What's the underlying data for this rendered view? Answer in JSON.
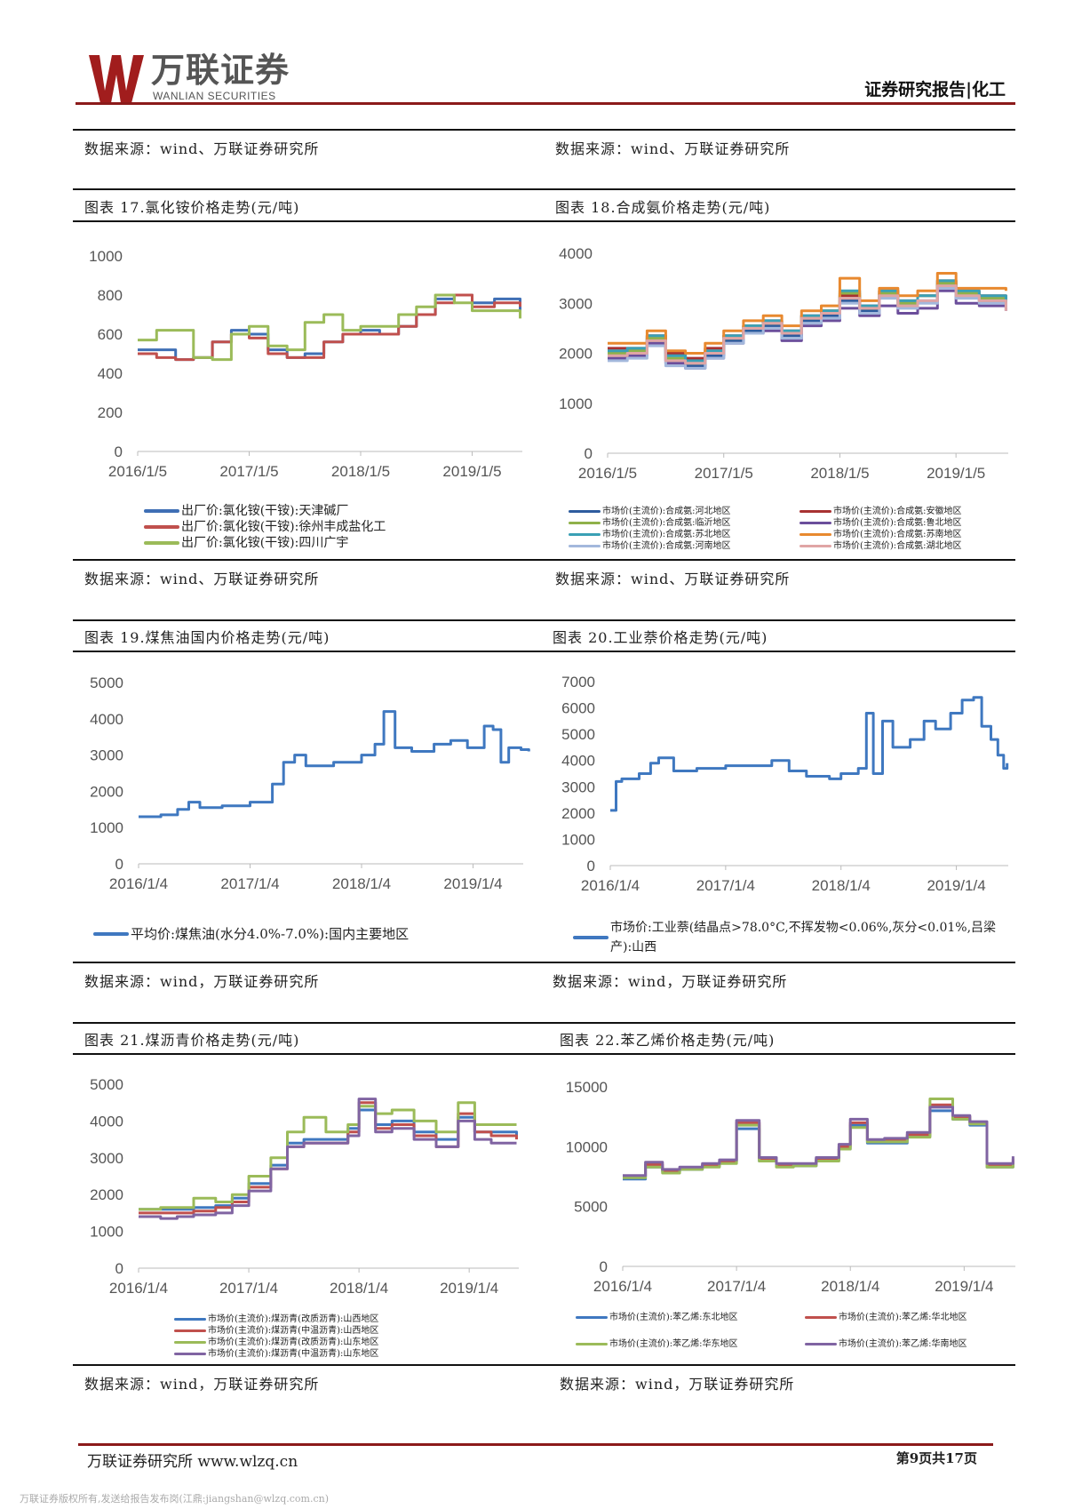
{
  "header": {
    "logo_cn": "万联证券",
    "logo_en": "WANLIAN SECURITIES",
    "report_tag": "证券研究报告|化工"
  },
  "sources": {
    "row0_left": "数据来源：wind、万联证券研究所",
    "row0_right": "数据来源：wind、万联证券研究所",
    "row1_left": "数据来源：wind、万联证券研究所",
    "row1_right": "数据来源：wind、万联证券研究所",
    "row2_left": "数据来源：wind，万联证券研究所",
    "row2_right": "数据来源：wind，万联证券研究所",
    "row3_left": "数据来源：wind，万联证券研究所",
    "row3_right": "数据来源：wind，万联证券研究所"
  },
  "footer": {
    "left": "万联证券研究所 www.wlzq.cn",
    "right": "第9页共17页",
    "copyright": "万联证券版权所有,发送给报告发布岗(江鼎:jiangshan@wlzq.com.cn)"
  },
  "colors": {
    "brand_red": "#8b1a1a"
  },
  "chart_data": [
    {
      "id": "c17",
      "type": "line",
      "title": "图表 17.氯化铵价格走势(元/吨)",
      "xlim": [
        2016.0,
        2019.45
      ],
      "ylim": [
        0,
        1000
      ],
      "yticks": [
        0,
        200,
        400,
        600,
        800,
        1000
      ],
      "xticks": [
        {
          "x": 2016.0,
          "label": "2016/1/5"
        },
        {
          "x": 2017.0,
          "label": "2017/1/5"
        },
        {
          "x": 2018.0,
          "label": "2018/1/5"
        },
        {
          "x": 2019.0,
          "label": "2019/1/5"
        }
      ],
      "x": [
        2016.0,
        2016.17,
        2016.34,
        2016.5,
        2016.67,
        2016.84,
        2017.0,
        2017.17,
        2017.34,
        2017.5,
        2017.67,
        2017.84,
        2018.0,
        2018.17,
        2018.34,
        2018.5,
        2018.67,
        2018.84,
        2019.0,
        2019.2,
        2019.43
      ],
      "series": [
        {
          "name": "出厂价:氯化铵(干铵):天津碱厂",
          "color": "#3f6fb5",
          "values": [
            520,
            520,
            470,
            480,
            560,
            620,
            600,
            520,
            480,
            500,
            560,
            600,
            620,
            600,
            640,
            700,
            780,
            800,
            760,
            780,
            720
          ]
        },
        {
          "name": "出厂价:氯化铵(干铵):徐州丰成盐化工",
          "color": "#c0504d",
          "values": [
            500,
            480,
            470,
            480,
            560,
            600,
            580,
            500,
            480,
            480,
            560,
            600,
            600,
            600,
            640,
            700,
            760,
            800,
            740,
            760,
            740
          ]
        },
        {
          "name": "出厂价:氯化铵(干铵):四川广宇",
          "color": "#9bbb59",
          "values": [
            570,
            620,
            620,
            480,
            470,
            600,
            640,
            540,
            520,
            660,
            700,
            620,
            640,
            640,
            700,
            740,
            800,
            760,
            720,
            720,
            680
          ]
        }
      ]
    },
    {
      "id": "c18",
      "type": "line",
      "title": "图表 18.合成氨价格走势(元/吨)",
      "xlim": [
        2016.0,
        2019.45
      ],
      "ylim": [
        0,
        4000
      ],
      "yticks": [
        0,
        1000,
        2000,
        3000,
        4000
      ],
      "xticks": [
        {
          "x": 2016.0,
          "label": "2016/1/5"
        },
        {
          "x": 2017.0,
          "label": "2017/1/5"
        },
        {
          "x": 2018.0,
          "label": "2018/1/5"
        },
        {
          "x": 2019.0,
          "label": "2019/1/5"
        }
      ],
      "x": [
        2016.0,
        2016.17,
        2016.34,
        2016.5,
        2016.67,
        2016.84,
        2017.0,
        2017.17,
        2017.34,
        2017.5,
        2017.67,
        2017.84,
        2018.0,
        2018.17,
        2018.34,
        2018.5,
        2018.67,
        2018.84,
        2019.0,
        2019.2,
        2019.43
      ],
      "series": [
        {
          "name": "市场价(主流价):合成氨:河北地区",
          "color": "#2e5c9e",
          "values": [
            1950,
            2000,
            2250,
            1850,
            1750,
            1950,
            2250,
            2450,
            2550,
            2350,
            2650,
            2750,
            3050,
            2850,
            3150,
            2950,
            3050,
            3350,
            3150,
            3050,
            2950
          ]
        },
        {
          "name": "市场价(主流价):合成氨:安徽地区",
          "color": "#a83232",
          "values": [
            2100,
            2100,
            2350,
            2000,
            1900,
            2100,
            2350,
            2550,
            2650,
            2450,
            2750,
            2850,
            3150,
            2950,
            3250,
            3050,
            3150,
            3450,
            3250,
            3150,
            3050
          ]
        },
        {
          "name": "市场价(主流价):合成氨:临沂地区",
          "color": "#8fb14a",
          "values": [
            2000,
            2050,
            2300,
            1900,
            1800,
            2000,
            2300,
            2550,
            2600,
            2400,
            2700,
            2850,
            3200,
            2900,
            3200,
            3000,
            3150,
            3400,
            3200,
            3100,
            3050
          ]
        },
        {
          "name": "市场价(主流价):合成氨:鲁北地区",
          "color": "#6b4e9b",
          "values": [
            1900,
            1950,
            2200,
            1800,
            1700,
            1900,
            2200,
            2400,
            2450,
            2250,
            2550,
            2650,
            2900,
            2750,
            2950,
            2800,
            2900,
            3250,
            3000,
            2950,
            2850
          ]
        },
        {
          "name": "市场价(主流价):合成氨:苏北地区",
          "color": "#3aa0b5",
          "values": [
            2050,
            2100,
            2350,
            1950,
            1850,
            2050,
            2350,
            2550,
            2650,
            2450,
            2750,
            2850,
            3250,
            2950,
            3250,
            3050,
            3150,
            3450,
            3250,
            3150,
            3050
          ]
        },
        {
          "name": "市场价(主流价):合成氨:苏南地区",
          "color": "#e8892f",
          "values": [
            2200,
            2200,
            2450,
            2050,
            2000,
            2200,
            2450,
            2650,
            2750,
            2550,
            2850,
            2950,
            3500,
            3050,
            3300,
            3150,
            3250,
            3600,
            3300,
            3300,
            3250
          ]
        },
        {
          "name": "市场价(主流价):合成氨:河南地区",
          "color": "#a3b8dc",
          "values": [
            1850,
            1900,
            2150,
            1750,
            1700,
            1900,
            2200,
            2400,
            2500,
            2300,
            2600,
            2700,
            3000,
            2800,
            3100,
            2900,
            3000,
            3300,
            3100,
            3000,
            2900
          ]
        },
        {
          "name": "市场价(主流价):合成氨:湖北地区",
          "color": "#e0a5a5",
          "values": [
            1950,
            2000,
            2250,
            1850,
            1800,
            2000,
            2300,
            2500,
            2600,
            2400,
            2700,
            2800,
            3100,
            2900,
            3150,
            2950,
            3050,
            3350,
            3150,
            3050,
            2850
          ]
        }
      ]
    },
    {
      "id": "c19",
      "type": "line",
      "title": "图表 19.煤焦油国内价格走势(元/吨)",
      "xlim": [
        2016.0,
        2019.45
      ],
      "ylim": [
        0,
        5000
      ],
      "yticks": [
        0,
        1000,
        2000,
        3000,
        4000,
        5000
      ],
      "xticks": [
        {
          "x": 2016.0,
          "label": "2016/1/4"
        },
        {
          "x": 2017.0,
          "label": "2017/1/4"
        },
        {
          "x": 2018.0,
          "label": "2018/1/4"
        },
        {
          "x": 2019.0,
          "label": "2019/1/4"
        }
      ],
      "x": [
        2016.0,
        2016.2,
        2016.35,
        2016.45,
        2016.55,
        2016.75,
        2017.0,
        2017.2,
        2017.3,
        2017.4,
        2017.5,
        2017.75,
        2018.0,
        2018.12,
        2018.2,
        2018.3,
        2018.45,
        2018.65,
        2018.8,
        2018.95,
        2019.1,
        2019.18,
        2019.25,
        2019.32,
        2019.5,
        2019.43
      ],
      "series": [
        {
          "name": "平均价:煤焦油(水分4.0%-7.0%):国内主要地区",
          "color": "#3f78c0",
          "values": [
            1300,
            1350,
            1500,
            1700,
            1550,
            1600,
            1700,
            2200,
            2800,
            3000,
            2700,
            2800,
            3000,
            3300,
            4200,
            3200,
            3100,
            3300,
            3400,
            3200,
            3800,
            3700,
            2800,
            3200,
            3100,
            3150
          ]
        }
      ]
    },
    {
      "id": "c20",
      "type": "line",
      "title": "图表 20.工业萘价格走势(元/吨)",
      "xlim": [
        2016.0,
        2019.45
      ],
      "ylim": [
        0,
        7000
      ],
      "yticks": [
        0,
        1000,
        2000,
        3000,
        4000,
        5000,
        6000,
        7000
      ],
      "xticks": [
        {
          "x": 2016.0,
          "label": "2016/1/4"
        },
        {
          "x": 2017.0,
          "label": "2017/1/4"
        },
        {
          "x": 2018.0,
          "label": "2018/1/4"
        },
        {
          "x": 2019.0,
          "label": "2019/1/4"
        }
      ],
      "x": [
        2016.0,
        2016.05,
        2016.1,
        2016.25,
        2016.35,
        2016.42,
        2016.55,
        2016.75,
        2017.0,
        2017.2,
        2017.4,
        2017.55,
        2017.7,
        2017.9,
        2018.0,
        2018.15,
        2018.22,
        2018.28,
        2018.36,
        2018.45,
        2018.6,
        2018.72,
        2018.82,
        2018.95,
        2019.05,
        2019.15,
        2019.22,
        2019.3,
        2019.36,
        2019.41,
        2019.44
      ],
      "series": [
        {
          "name": "市场价:工业萘(结晶点>78.0°C,不挥发物<0.06%,灰分<0.01%,吕梁产):山西",
          "color": "#3f78c0",
          "values": [
            2100,
            3200,
            3300,
            3500,
            3900,
            4100,
            3600,
            3700,
            3800,
            3800,
            4000,
            3600,
            3400,
            3300,
            3500,
            3700,
            5800,
            3500,
            5500,
            4500,
            4800,
            5500,
            5200,
            5800,
            6300,
            6400,
            5300,
            4800,
            4200,
            3700,
            3900
          ]
        }
      ]
    },
    {
      "id": "c21",
      "type": "line",
      "title": "图表 21.煤沥青价格走势(元/吨)",
      "xlim": [
        2016.0,
        2019.45
      ],
      "ylim": [
        0,
        5000
      ],
      "yticks": [
        0,
        1000,
        2000,
        3000,
        4000,
        5000
      ],
      "xticks": [
        {
          "x": 2016.0,
          "label": "2016/1/4"
        },
        {
          "x": 2017.0,
          "label": "2017/1/4"
        },
        {
          "x": 2018.0,
          "label": "2018/1/4"
        },
        {
          "x": 2019.0,
          "label": "2019/1/4"
        }
      ],
      "x": [
        2016.0,
        2016.2,
        2016.35,
        2016.5,
        2016.7,
        2016.85,
        2017.0,
        2017.2,
        2017.35,
        2017.5,
        2017.7,
        2017.9,
        2018.0,
        2018.15,
        2018.3,
        2018.5,
        2018.7,
        2018.9,
        2019.05,
        2019.2,
        2019.43
      ],
      "series": [
        {
          "name": "市场价(主流价):煤沥青(改质沥青):山西地区",
          "color": "#3f78c0",
          "values": [
            1600,
            1600,
            1600,
            1650,
            1700,
            1900,
            2300,
            2800,
            3400,
            3500,
            3500,
            3800,
            4300,
            3900,
            4000,
            3700,
            3500,
            4100,
            3700,
            3700,
            3600
          ]
        },
        {
          "name": "市场价(主流价):煤沥青(中温沥青):山西地区",
          "color": "#c0504d",
          "values": [
            1500,
            1500,
            1500,
            1550,
            1650,
            1800,
            2200,
            2700,
            3300,
            3400,
            3400,
            3700,
            4500,
            3800,
            3900,
            3600,
            3300,
            4200,
            3700,
            3600,
            3500
          ]
        },
        {
          "name": "市场价(主流价):煤沥青(改质沥青):山东地区",
          "color": "#9bbb59",
          "values": [
            1600,
            1650,
            1650,
            1900,
            1800,
            2000,
            2500,
            3000,
            3700,
            4100,
            3700,
            3900,
            4400,
            4200,
            4300,
            4000,
            3700,
            4500,
            3900,
            3900,
            3900
          ]
        },
        {
          "name": "市场价(主流价):煤沥青(中温沥青):山东地区",
          "color": "#8064a2",
          "values": [
            1400,
            1350,
            1400,
            1450,
            1500,
            1700,
            2100,
            2700,
            3300,
            3400,
            3400,
            3600,
            4600,
            3700,
            3800,
            3500,
            3300,
            4000,
            3500,
            3400,
            3400
          ]
        }
      ]
    },
    {
      "id": "c22",
      "type": "line",
      "title": "图表 22.苯乙烯价格走势(元/吨)",
      "xlim": [
        2016.0,
        2019.45
      ],
      "ylim": [
        0,
        15000
      ],
      "yticks": [
        0,
        5000,
        10000,
        15000
      ],
      "xticks": [
        {
          "x": 2016.0,
          "label": "2016/1/4"
        },
        {
          "x": 2017.0,
          "label": "2017/1/4"
        },
        {
          "x": 2018.0,
          "label": "2018/1/4"
        },
        {
          "x": 2019.0,
          "label": "2019/1/4"
        }
      ],
      "x": [
        2016.0,
        2016.2,
        2016.35,
        2016.5,
        2016.7,
        2016.85,
        2017.0,
        2017.2,
        2017.35,
        2017.5,
        2017.7,
        2017.9,
        2018.0,
        2018.15,
        2018.3,
        2018.5,
        2018.7,
        2018.9,
        2019.05,
        2019.2,
        2019.43
      ],
      "series": [
        {
          "name": "市场价(主流价):苯乙烯:东北地区",
          "color": "#3f78c0",
          "values": [
            7300,
            8300,
            7900,
            8100,
            8400,
            8700,
            11500,
            8800,
            8400,
            8400,
            8900,
            9800,
            11800,
            10300,
            10300,
            10900,
            13000,
            12300,
            11800,
            8300,
            8800
          ]
        },
        {
          "name": "市场价(主流价):苯乙烯:华北地区",
          "color": "#c0504d",
          "values": [
            7500,
            8500,
            8000,
            8200,
            8500,
            8800,
            12000,
            9000,
            8500,
            8500,
            9000,
            10000,
            12000,
            10500,
            10600,
            11000,
            13500,
            12500,
            12000,
            8500,
            9000
          ]
        },
        {
          "name": "市场价(主流价):苯乙烯:华东地区",
          "color": "#9bbb59",
          "values": [
            7400,
            8300,
            7800,
            8100,
            8300,
            8600,
            11800,
            8800,
            8300,
            8400,
            8800,
            9800,
            11600,
            10400,
            10400,
            10800,
            14000,
            12300,
            11900,
            8300,
            8700
          ]
        },
        {
          "name": "市场价(主流价):苯乙烯:华南地区",
          "color": "#8064a2",
          "values": [
            7600,
            8700,
            8100,
            8300,
            8600,
            8900,
            12200,
            9100,
            8600,
            8600,
            9100,
            10200,
            12300,
            10600,
            10700,
            11200,
            13300,
            12600,
            12100,
            8600,
            9200
          ]
        }
      ]
    }
  ]
}
